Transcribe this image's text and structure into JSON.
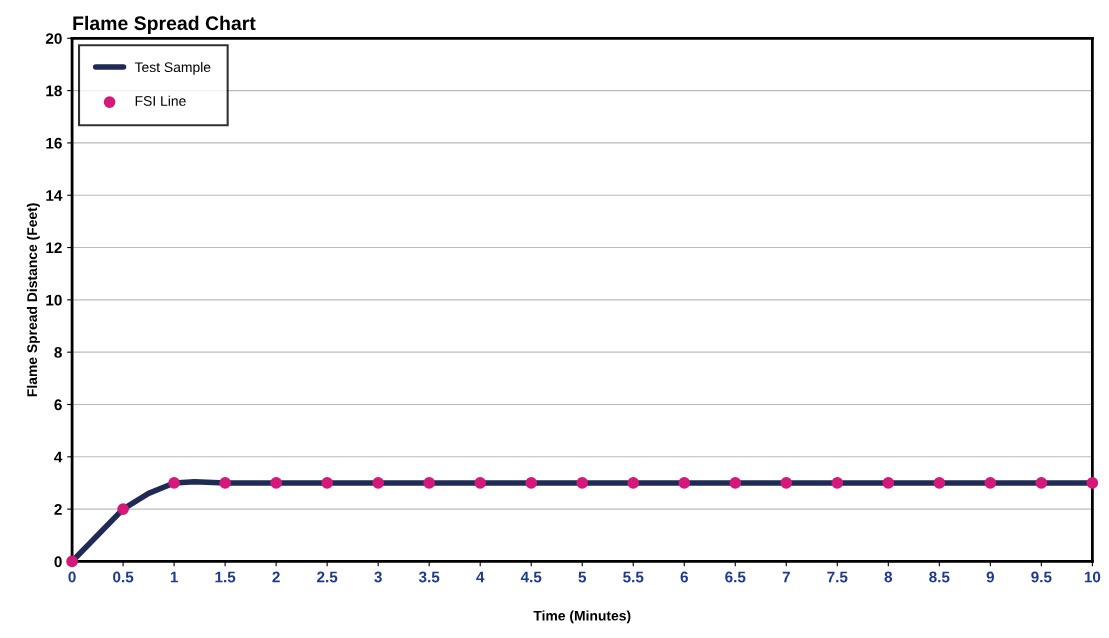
{
  "chart_data": {
    "type": "line",
    "title": "Flame Spread Chart",
    "xlabel": "Time (Minutes)",
    "ylabel": "Flame Spread Distance (Feet)",
    "series": [
      {
        "name": "Test Sample",
        "color": "#1f2a55",
        "marker": "none",
        "x": [
          0,
          0.25,
          0.5,
          0.75,
          1,
          1.2,
          1.5,
          2,
          3,
          4,
          5,
          6,
          7,
          8,
          9,
          10
        ],
        "values": [
          0,
          1,
          2,
          2.6,
          3,
          3.05,
          3,
          3,
          3,
          3,
          3,
          3,
          3,
          3,
          3,
          3
        ]
      },
      {
        "name": "FSI Line",
        "type": "scatter",
        "color": "#d4197a",
        "marker": "circle",
        "x": [
          0,
          0.5,
          1,
          1.5,
          2,
          2.5,
          3,
          3.5,
          4,
          4.5,
          5,
          5.5,
          6,
          6.5,
          7,
          7.5,
          8,
          8.5,
          9,
          9.5,
          10
        ],
        "values": [
          0,
          2,
          3,
          3,
          3,
          3,
          3,
          3,
          3,
          3,
          3,
          3,
          3,
          3,
          3,
          3,
          3,
          3,
          3,
          3,
          3
        ]
      }
    ],
    "xlim": [
      0,
      10
    ],
    "xticks": [
      0,
      0.5,
      1,
      1.5,
      2,
      2.5,
      3,
      3.5,
      4,
      4.5,
      5,
      5.5,
      6,
      6.5,
      7,
      7.5,
      8,
      8.5,
      9,
      9.5,
      10
    ],
    "ylim": [
      0,
      20
    ],
    "yticks": [
      0,
      2,
      4,
      6,
      8,
      10,
      12,
      14,
      16,
      18,
      20
    ],
    "grid": "y",
    "legend": "top left"
  }
}
